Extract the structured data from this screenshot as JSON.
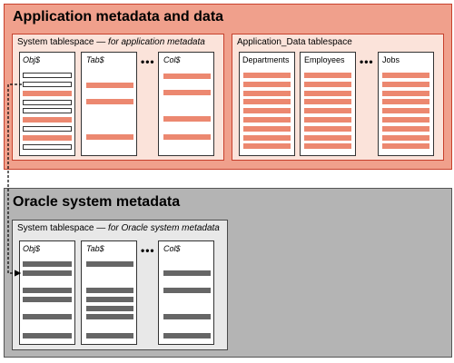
{
  "colors": {
    "app_panel": "#f0a08c",
    "app_tablespace": "#fbe3da",
    "sys_panel": "#b4b4b4",
    "sys_tablespace": "#e8e8e8",
    "red_row": "#ec8870",
    "gray_row": "#666666"
  },
  "app_panel": {
    "title": "Application metadata and data",
    "system_ts": {
      "title_prefix": "System tablespace — ",
      "title_italic": "for application metadata",
      "tables": [
        "Obj$",
        "Tab$",
        "Col$"
      ]
    },
    "data_ts": {
      "title": "Application_Data tablespace",
      "tables": [
        "Departments",
        "Employees",
        "Jobs"
      ]
    },
    "ellipsis": "•••"
  },
  "sys_panel": {
    "title": "Oracle system metadata",
    "system_ts": {
      "title_prefix": "System tablespace — ",
      "title_italic": "for Oracle system metadata",
      "tables": [
        "Obj$",
        "Tab$",
        "Col$"
      ]
    },
    "ellipsis": "•••"
  }
}
